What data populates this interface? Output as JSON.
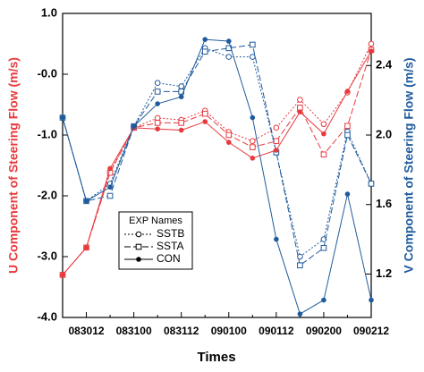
{
  "chart_data": {
    "type": "line",
    "xlabel": "Times",
    "ylabel": "U Component of Steering Flow (m/s)",
    "y2label": "V Component of Steering Flow (m/s)",
    "categories": [
      null,
      "083012",
      null,
      "083100",
      null,
      "083112",
      null,
      "090100",
      null,
      "090112",
      null,
      "090200",
      null,
      "090212"
    ],
    "ylim": [
      -4,
      1
    ],
    "yticks": [
      {
        "value": 1,
        "label": "1.0"
      },
      {
        "value": 0,
        "label": "-0.0"
      },
      {
        "value": -1,
        "label": "-1.0"
      },
      {
        "value": -2,
        "label": "-2.0"
      },
      {
        "value": -3,
        "label": "-3.0"
      },
      {
        "value": -4,
        "label": "-4.0"
      }
    ],
    "y2lim": [
      0.95,
      2.7
    ],
    "y2ticks": [
      {
        "value": 1.2,
        "label": "1.2"
      },
      {
        "value": 1.6,
        "label": "1.6"
      },
      {
        "value": 2,
        "label": "2.0"
      },
      {
        "value": 2.4,
        "label": "2.4"
      }
    ],
    "u_color": "#e8393d",
    "v_color": "#1f5b9c",
    "legend_title": "EXP Names",
    "series": [
      {
        "name": "SSTB",
        "dash": "2,2",
        "marker": "open-circle",
        "values": [
          -3.3,
          -2.85,
          -1.6,
          -0.88,
          -0.72,
          -0.75,
          -0.6,
          -0.95,
          -1.1,
          -0.88,
          -0.42,
          -0.82,
          -0.3,
          0.5
        ],
        "values_y2": [
          2.1,
          1.62,
          1.72,
          2.05,
          2.3,
          2.28,
          2.5,
          2.45,
          2.45,
          1.9,
          1.3,
          1.4,
          2.02,
          1.72
        ]
      },
      {
        "name": "SSTA",
        "dash": "7,3",
        "marker": "open-square",
        "values": [
          -3.3,
          -2.85,
          -1.62,
          -0.88,
          -0.8,
          -0.8,
          -0.65,
          -1.0,
          -1.2,
          -1.1,
          -0.55,
          -1.32,
          -0.85,
          0.4
        ],
        "values_y2": [
          2.1,
          1.62,
          1.65,
          2.05,
          2.25,
          2.25,
          2.48,
          2.5,
          2.52,
          1.9,
          1.25,
          1.35,
          2.0,
          1.72
        ]
      },
      {
        "name": "CON",
        "dash": "none",
        "marker": "dot",
        "values": [
          -3.3,
          -2.85,
          -1.55,
          -0.88,
          -0.9,
          -0.92,
          -0.78,
          -1.12,
          -1.38,
          -1.25,
          -0.62,
          -0.98,
          -0.28,
          0.38
        ],
        "values_y2": [
          2.1,
          1.62,
          1.7,
          2.05,
          2.18,
          2.22,
          2.55,
          2.54,
          2.1,
          1.4,
          0.97,
          1.05,
          1.66,
          1.05
        ]
      }
    ]
  }
}
